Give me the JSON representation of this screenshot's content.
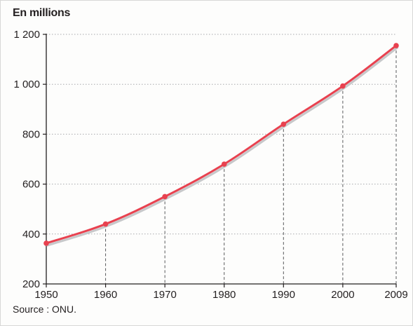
{
  "chart_data": {
    "type": "line",
    "unit_label": "En millions",
    "source": "Source : ONU.",
    "x": [
      1950,
      1960,
      1970,
      1980,
      1990,
      2000,
      2009
    ],
    "x_tick_labels": [
      "1950",
      "1960",
      "1970",
      "1980",
      "1990",
      "2000",
      "2009"
    ],
    "series": [
      {
        "values": [
          363,
          440,
          550,
          680,
          840,
          993,
          1155
        ]
      }
    ],
    "ylim": [
      200,
      1200
    ],
    "y_ticks": [
      200,
      400,
      600,
      800,
      1000,
      1200
    ],
    "y_tick_labels": [
      "200",
      "400",
      "600",
      "800",
      "1 000",
      "1 200"
    ],
    "grid": true,
    "colors": {
      "line": "#e8414f",
      "grid": "#a7a9ac",
      "axis": "#231f20",
      "shadow": "#c7c8ca"
    }
  }
}
